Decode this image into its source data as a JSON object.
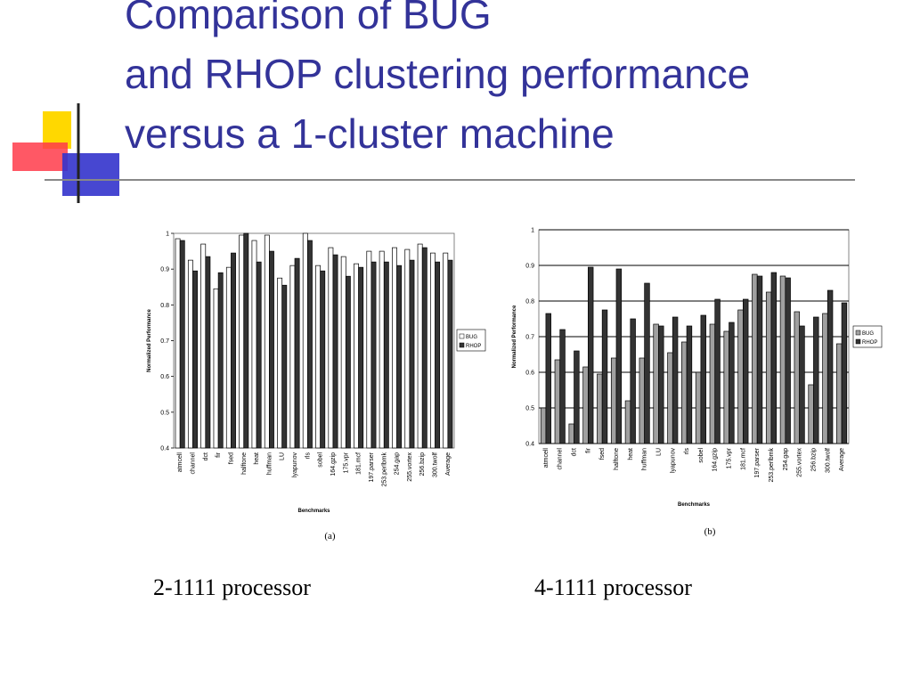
{
  "slide": {
    "title": "Comparison of BUG and RHOP clustering performance versus a 1-cluster machine",
    "captions": [
      "2-1111 processor",
      "4-1111 processor"
    ]
  },
  "chart_data": [
    {
      "type": "bar",
      "label": "(a)",
      "x_label": "Benchmarks",
      "y_label": "Normalized Performance",
      "categories": [
        "atmcell",
        "channel",
        "dct",
        "fir",
        "fsed",
        "halftone",
        "heat",
        "huffman",
        "LU",
        "lyapunov",
        "rls",
        "sobel",
        "164.gzip",
        "175.vpr",
        "181.mcf",
        "197.parser",
        "253.perlbmk",
        "254.gap",
        "255.vortex",
        "256.bzip",
        "300.twolf",
        "Average"
      ],
      "series": [
        {
          "name": "BUG",
          "color": "#ffffff",
          "values": [
            0.985,
            0.925,
            0.97,
            0.845,
            0.905,
            0.995,
            0.98,
            0.995,
            0.875,
            0.91,
            1.0,
            0.91,
            0.96,
            0.935,
            0.915,
            0.95,
            0.95,
            0.96,
            0.955,
            0.97,
            0.945,
            0.945
          ]
        },
        {
          "name": "RHOP",
          "color": "#333333",
          "values": [
            0.98,
            0.895,
            0.935,
            0.89,
            0.945,
            1.0,
            0.92,
            0.95,
            0.855,
            0.93,
            0.98,
            0.895,
            0.94,
            0.88,
            0.905,
            0.92,
            0.92,
            0.91,
            0.925,
            0.96,
            0.92,
            0.925
          ]
        }
      ],
      "ylim": [
        0.4,
        1
      ],
      "yticks": [
        0.4,
        0.5,
        0.6,
        0.7,
        0.8,
        0.9,
        1
      ],
      "grid": false
    },
    {
      "type": "bar",
      "label": "(b)",
      "x_label": "Benchmarks",
      "y_label": "Normalized Performance",
      "categories": [
        "atmcell",
        "channel",
        "dct",
        "fir",
        "fsed",
        "halftone",
        "heat",
        "huffman",
        "LU",
        "lyapunov",
        "rls",
        "sobel",
        "164.gzip",
        "175.vpr",
        "181.mcf",
        "197.parser",
        "253.perlbmk",
        "254.gap",
        "255.vortex",
        "256.bzip",
        "300.twolf",
        "Average"
      ],
      "series": [
        {
          "name": "BUG",
          "color": "#a0a0a0",
          "values": [
            0.5,
            0.635,
            0.455,
            0.615,
            0.595,
            0.64,
            0.52,
            0.64,
            0.735,
            0.655,
            0.685,
            0.6,
            0.735,
            0.715,
            0.775,
            0.875,
            0.825,
            0.87,
            0.77,
            0.565,
            0.765,
            0.68
          ]
        },
        {
          "name": "RHOP",
          "color": "#333333",
          "values": [
            0.765,
            0.72,
            0.66,
            0.895,
            0.775,
            0.89,
            0.75,
            0.85,
            0.73,
            0.755,
            0.73,
            0.76,
            0.805,
            0.74,
            0.805,
            0.87,
            0.88,
            0.865,
            0.73,
            0.755,
            0.83,
            0.795
          ]
        }
      ],
      "ylim": [
        0.4,
        1
      ],
      "yticks": [
        0.4,
        0.5,
        0.6,
        0.7,
        0.8,
        0.9,
        1
      ],
      "grid": true
    }
  ]
}
